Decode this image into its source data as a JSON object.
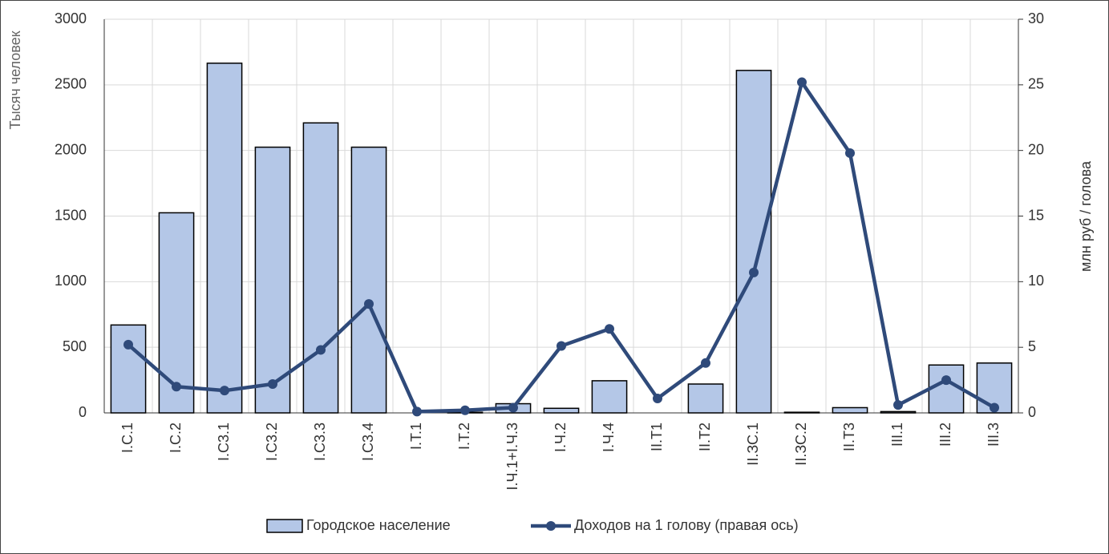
{
  "chart_data": {
    "type": "bar_line",
    "categories": [
      "I.С.1",
      "I.С.2",
      "I.С3.1",
      "I.С3.2",
      "I.С3.3",
      "I.С3.4",
      "I.Т.1",
      "I.Т.2",
      "I.Ч.1+I.Ч.3",
      "I.Ч.2",
      "I.Ч.4",
      "II.Т1",
      "II.Т2",
      "II.ЗС.1",
      "II.ЗС.2",
      "II.Т3",
      "III.1",
      "III.2",
      "III.3"
    ],
    "series": [
      {
        "name": "Городское население",
        "type": "bar",
        "color": "#b4c7e7",
        "values": [
          670,
          1525,
          2665,
          2025,
          2210,
          2025,
          0,
          5,
          70,
          35,
          245,
          0,
          220,
          2610,
          5,
          40,
          10,
          365,
          380
        ]
      },
      {
        "name": "Доходов на 1 голову (правая ось)",
        "type": "line",
        "axis": "y2",
        "color": "#2f4a7a",
        "values": [
          5.2,
          2.0,
          1.7,
          2.2,
          4.8,
          8.3,
          0.1,
          0.2,
          0.4,
          5.1,
          6.4,
          1.1,
          3.8,
          10.7,
          25.2,
          19.8,
          0.6,
          2.5,
          0.4
        ]
      }
    ],
    "ylabel": "Тысяч человек",
    "y2label": "млн руб / голова",
    "ylim": [
      0,
      3000
    ],
    "yticks": [
      0,
      500,
      1000,
      1500,
      2000,
      2500,
      3000
    ],
    "y2lim": [
      0,
      30
    ],
    "y2ticks": [
      0,
      5,
      10,
      15,
      20,
      25,
      30
    ],
    "grid": true,
    "legend": "bottom"
  }
}
